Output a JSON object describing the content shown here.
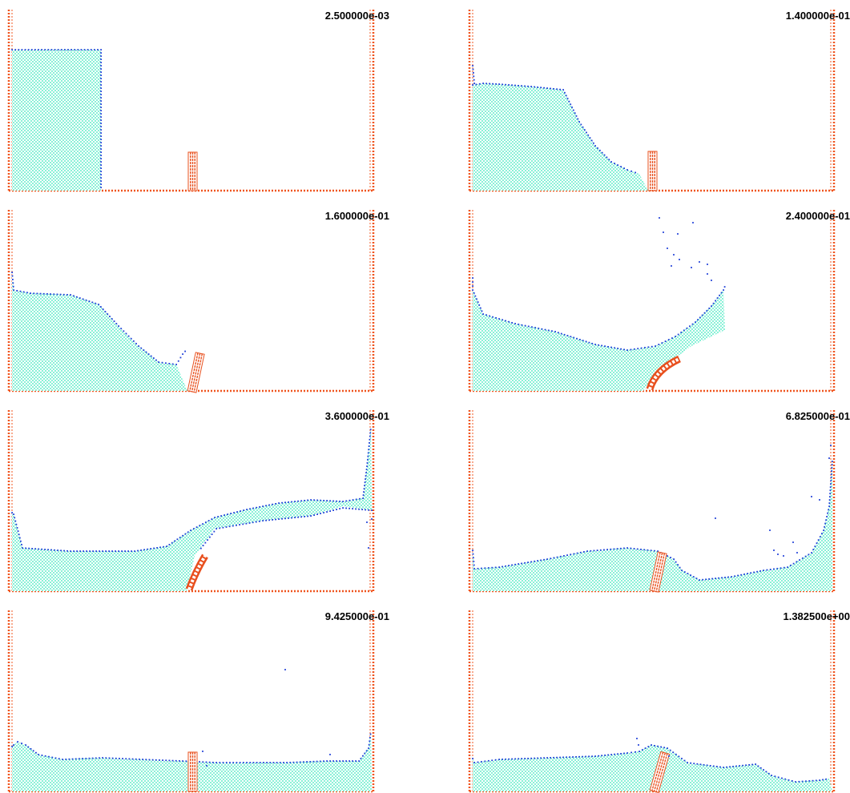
{
  "panels": [
    {
      "label": "2.500000e-03"
    },
    {
      "label": "1.400000e-01"
    },
    {
      "label": "1.600000e-01"
    },
    {
      "label": "2.400000e-01"
    },
    {
      "label": "3.600000e-01"
    },
    {
      "label": "6.825000e-01"
    },
    {
      "label": "9.425000e-01"
    },
    {
      "label": "1.382500e+00"
    }
  ],
  "colors": {
    "water": "#7ff0d4",
    "surface": "#1f3fd8",
    "wall": "#f0541e",
    "gate": "#e8501e"
  }
}
